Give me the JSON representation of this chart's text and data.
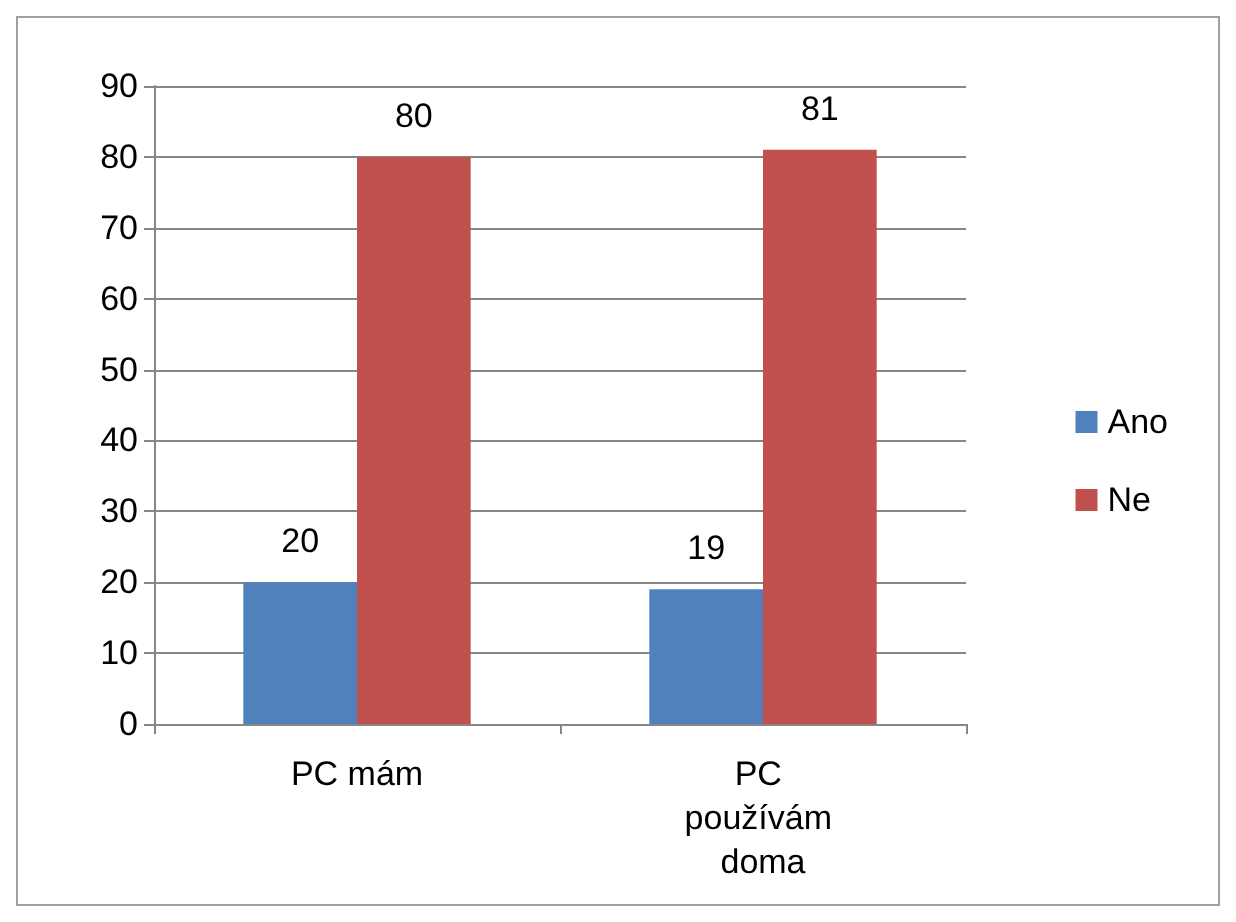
{
  "chart_data": {
    "type": "bar",
    "categories": [
      "PC mám",
      "PC používám doma"
    ],
    "series": [
      {
        "name": "Ano",
        "color": "#4f81bd",
        "values": [
          20,
          19
        ]
      },
      {
        "name": "Ne",
        "color": "#c0504d",
        "values": [
          80,
          81
        ]
      }
    ],
    "ylim": [
      0,
      90
    ],
    "yticks": [
      0,
      10,
      20,
      30,
      40,
      50,
      60,
      70,
      80,
      90
    ],
    "grid": "y",
    "legend": "right",
    "data_labels": true
  }
}
